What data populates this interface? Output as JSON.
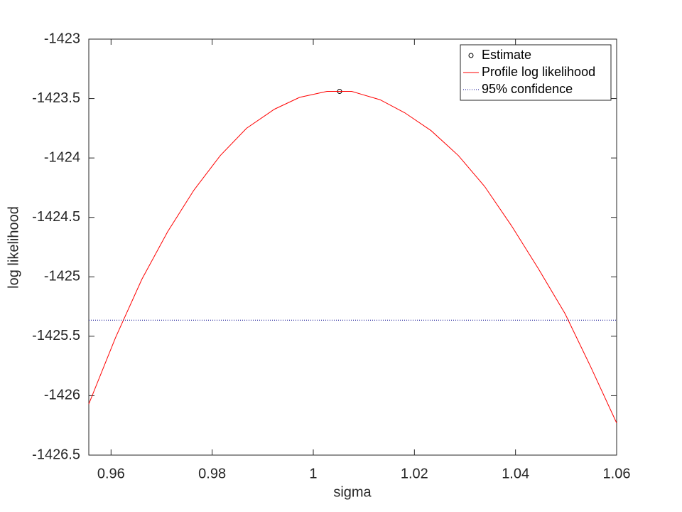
{
  "chart_data": {
    "type": "line",
    "xlabel": "sigma",
    "ylabel": "log likelihood",
    "xlim": [
      0.9556,
      1.06
    ],
    "ylim": [
      -1426.5,
      -1423
    ],
    "xticks": [
      0.96,
      0.98,
      1,
      1.02,
      1.04,
      1.06
    ],
    "yticks": [
      -1426.5,
      -1426,
      -1425.5,
      -1425,
      -1424.5,
      -1424,
      -1423.5,
      -1423
    ],
    "legend": "upper-right",
    "series": [
      {
        "name": "Estimate",
        "style": "marker",
        "color": "#000000",
        "x": [
          1.0052
        ],
        "values": [
          -1423.44
        ]
      },
      {
        "name": "Profile log likelihood",
        "style": "solid",
        "color": "#ff0000",
        "x": [
          0.9556,
          0.9609,
          0.9661,
          0.9712,
          0.9764,
          0.9816,
          0.9868,
          0.9923,
          0.9973,
          1.0027,
          1.0076,
          1.0132,
          1.0181,
          1.0233,
          1.0287,
          1.0339,
          1.0392,
          1.0445,
          1.0498,
          1.0549,
          1.06
        ],
        "values": [
          -1426.07,
          -1425.51,
          -1425.02,
          -1424.62,
          -1424.27,
          -1423.98,
          -1423.75,
          -1423.59,
          -1423.49,
          -1423.44,
          -1423.44,
          -1423.51,
          -1423.62,
          -1423.77,
          -1423.98,
          -1424.24,
          -1424.57,
          -1424.93,
          -1425.31,
          -1425.76,
          -1426.23
        ]
      },
      {
        "name": "95% confidence",
        "style": "dotted",
        "color": "#00008b",
        "x": [
          0.9556,
          1.06
        ],
        "values": [
          -1425.365,
          -1425.365
        ]
      }
    ]
  }
}
